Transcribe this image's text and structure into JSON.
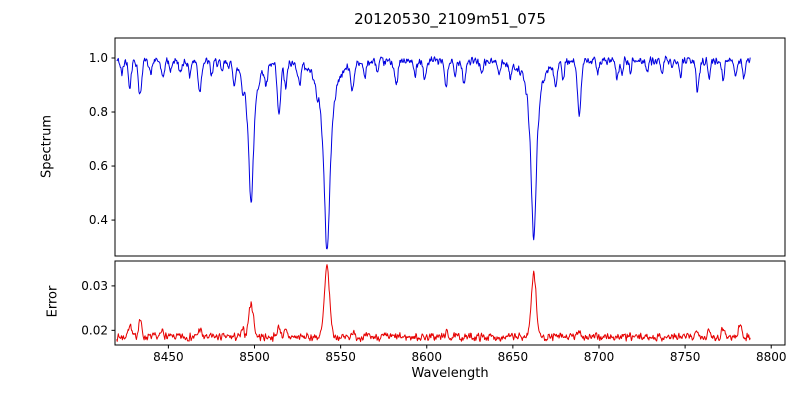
{
  "chart_data": {
    "type": "line",
    "title": "20120530_2109m51_075",
    "xlabel": "Wavelength",
    "xlim": [
      8419,
      8808
    ],
    "xticks": [
      8450,
      8500,
      8550,
      8600,
      8650,
      8700,
      8750,
      8800
    ],
    "xtick_labels": [
      "8450",
      "8500",
      "8550",
      "8600",
      "8650",
      "8700",
      "8750",
      "8800"
    ],
    "x_start": 8420,
    "x_end": 8788,
    "x_step": 0.3,
    "grid": false,
    "legend": "none",
    "panels": [
      {
        "name": "spectrum",
        "ylabel": "Spectrum",
        "ylim": [
          0.267,
          1.074
        ],
        "yticks": [
          0.4,
          0.6,
          0.8,
          1.0
        ],
        "ytick_labels": [
          "0.4",
          "0.6",
          "0.8",
          "1.0"
        ],
        "color": "#0000e0",
        "continuum": 0.99,
        "noise_amp": 0.016,
        "noise_seed": 42,
        "major_lines": [
          {
            "center": 8498.0,
            "depth": 0.52,
            "gamma": 1.9
          },
          {
            "center": 8542.1,
            "depth": 0.7,
            "gamma": 2.3
          },
          {
            "center": 8662.1,
            "depth": 0.66,
            "gamma": 2.0
          }
        ],
        "weak_lines": [
          [
            8423.0,
            0.05,
            0.7
          ],
          [
            8427.6,
            0.09,
            0.8
          ],
          [
            8433.5,
            0.13,
            0.9
          ],
          [
            8439.8,
            0.05,
            0.7
          ],
          [
            8446.7,
            0.07,
            0.8
          ],
          [
            8451.2,
            0.04,
            0.6
          ],
          [
            8457.0,
            0.05,
            0.7
          ],
          [
            8462.3,
            0.05,
            0.7
          ],
          [
            8468.2,
            0.11,
            0.9
          ],
          [
            8475.1,
            0.05,
            0.7
          ],
          [
            8481.0,
            0.04,
            0.6
          ],
          [
            8488.3,
            0.06,
            0.8
          ],
          [
            8493.2,
            0.05,
            0.6
          ],
          [
            8506.8,
            0.07,
            0.8
          ],
          [
            8514.2,
            0.19,
            1.0
          ],
          [
            8518.1,
            0.09,
            0.8
          ],
          [
            8526.0,
            0.07,
            0.8
          ],
          [
            8536.2,
            0.05,
            0.7
          ],
          [
            8556.8,
            0.09,
            0.9
          ],
          [
            8564.2,
            0.05,
            0.7
          ],
          [
            8571.5,
            0.04,
            0.6
          ],
          [
            8582.3,
            0.09,
            0.9
          ],
          [
            8593.0,
            0.05,
            0.7
          ],
          [
            8598.9,
            0.07,
            0.8
          ],
          [
            8611.2,
            0.09,
            0.9
          ],
          [
            8616.4,
            0.06,
            0.7
          ],
          [
            8621.7,
            0.08,
            0.8
          ],
          [
            8632.1,
            0.05,
            0.7
          ],
          [
            8642.3,
            0.04,
            0.6
          ],
          [
            8648.6,
            0.05,
            0.7
          ],
          [
            8674.8,
            0.08,
            0.8
          ],
          [
            8679.2,
            0.06,
            0.7
          ],
          [
            8688.6,
            0.19,
            1.0
          ],
          [
            8699.1,
            0.04,
            0.6
          ],
          [
            8710.5,
            0.07,
            0.8
          ],
          [
            8713.3,
            0.05,
            0.6
          ],
          [
            8718.2,
            0.04,
            0.6
          ],
          [
            8728.1,
            0.04,
            0.6
          ],
          [
            8736.3,
            0.05,
            0.7
          ],
          [
            8742.5,
            0.04,
            0.6
          ],
          [
            8747.3,
            0.05,
            0.7
          ],
          [
            8757.2,
            0.11,
            0.9
          ],
          [
            8764.0,
            0.06,
            0.7
          ],
          [
            8772.1,
            0.06,
            0.8
          ],
          [
            8779.3,
            0.05,
            0.7
          ],
          [
            8784.2,
            0.06,
            0.7
          ]
        ]
      },
      {
        "name": "error",
        "ylabel": "Error",
        "ylim": [
          0.0167,
          0.0356
        ],
        "yticks": [
          0.02,
          0.03
        ],
        "ytick_labels": [
          "0.02",
          "0.03"
        ],
        "color": "#e60000",
        "baseline": 0.0185,
        "noise_amp": 0.0009,
        "noise_seed": 7,
        "peaks": [
          [
            8427.6,
            0.003,
            0.9
          ],
          [
            8433.5,
            0.004,
            0.9
          ],
          [
            8446.7,
            0.0015,
            0.8
          ],
          [
            8468.2,
            0.0018,
            0.9
          ],
          [
            8493.2,
            0.0015,
            0.8
          ],
          [
            8498.0,
            0.0075,
            1.4
          ],
          [
            8514.2,
            0.0022,
            1.0
          ],
          [
            8518.1,
            0.0012,
            0.8
          ],
          [
            8542.1,
            0.0155,
            1.5
          ],
          [
            8556.8,
            0.0012,
            0.8
          ],
          [
            8611.2,
            0.001,
            0.8
          ],
          [
            8662.1,
            0.0145,
            1.4
          ],
          [
            8688.6,
            0.0015,
            0.9
          ],
          [
            8757.2,
            0.0018,
            0.9
          ],
          [
            8764.0,
            0.0012,
            0.8
          ],
          [
            8772.1,
            0.0022,
            0.9
          ],
          [
            8782.0,
            0.0028,
            0.9
          ]
        ]
      }
    ]
  }
}
